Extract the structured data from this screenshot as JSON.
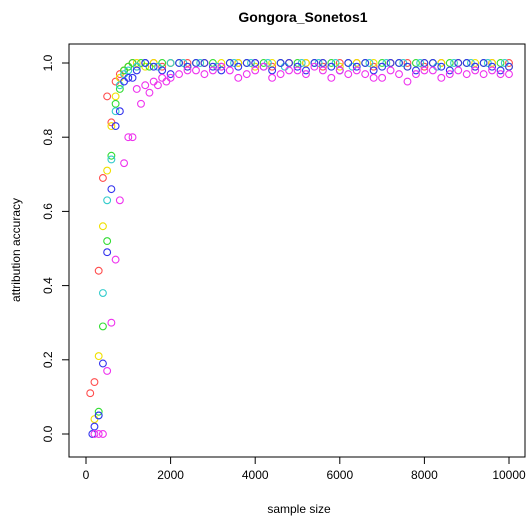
{
  "chart_data": {
    "type": "scatter",
    "title": "Gongora_Sonetos1",
    "xlabel": "sample size",
    "ylabel": "attribution accuracy",
    "xlim": [
      0,
      10000
    ],
    "ylim": [
      0,
      1
    ],
    "x_ticks": [
      0,
      2000,
      4000,
      6000,
      8000,
      10000
    ],
    "y_ticks": [
      0.0,
      0.2,
      0.4,
      0.6,
      0.8,
      1.0
    ],
    "x_tick_labels": [
      "0",
      "2000",
      "4000",
      "6000",
      "8000",
      "10000"
    ],
    "y_tick_labels": [
      "0.0",
      "0.2",
      "0.4",
      "0.6",
      "0.8",
      "1.0"
    ],
    "grid": false,
    "legend": "none",
    "marker": "open-circle",
    "series": [
      {
        "color": "#ff4d4d",
        "points": [
          [
            100,
            0.11
          ],
          [
            200,
            0.14
          ],
          [
            300,
            0.44
          ],
          [
            400,
            0.69
          ],
          [
            500,
            0.91
          ],
          [
            600,
            0.84
          ],
          [
            700,
            0.95
          ],
          [
            800,
            0.97
          ],
          [
            900,
            0.98
          ],
          [
            1000,
            0.99
          ],
          [
            1100,
            1.0
          ],
          [
            1200,
            0.99
          ],
          [
            1400,
            1.0
          ],
          [
            1600,
            1.0
          ],
          [
            1800,
            0.99
          ],
          [
            2000,
            1.0
          ],
          [
            2400,
            1.0
          ],
          [
            2800,
            1.0
          ],
          [
            3200,
            0.99
          ],
          [
            3600,
            1.0
          ],
          [
            4000,
            1.0
          ],
          [
            4400,
            0.99
          ],
          [
            4800,
            1.0
          ],
          [
            5200,
            1.0
          ],
          [
            5600,
            0.99
          ],
          [
            6000,
            1.0
          ],
          [
            6400,
            1.0
          ],
          [
            6800,
            0.99
          ],
          [
            7200,
            1.0
          ],
          [
            7600,
            1.0
          ],
          [
            8000,
            0.99
          ],
          [
            8400,
            1.0
          ],
          [
            8800,
            1.0
          ],
          [
            9200,
            0.99
          ],
          [
            9600,
            1.0
          ],
          [
            10000,
            1.0
          ]
        ]
      },
      {
        "color": "#f0e000",
        "points": [
          [
            200,
            0.04
          ],
          [
            300,
            0.21
          ],
          [
            400,
            0.56
          ],
          [
            500,
            0.71
          ],
          [
            600,
            0.83
          ],
          [
            700,
            0.91
          ],
          [
            800,
            0.96
          ],
          [
            900,
            0.98
          ],
          [
            1000,
            0.99
          ],
          [
            1200,
            1.0
          ],
          [
            1400,
            0.99
          ],
          [
            1600,
            1.0
          ],
          [
            2000,
            1.0
          ],
          [
            2400,
            0.99
          ],
          [
            2800,
            1.0
          ],
          [
            3200,
            1.0
          ],
          [
            3600,
            1.0
          ],
          [
            4000,
            0.99
          ],
          [
            4400,
            1.0
          ],
          [
            4800,
            1.0
          ],
          [
            5200,
            1.0
          ],
          [
            5600,
            1.0
          ],
          [
            6000,
            0.99
          ],
          [
            6400,
            1.0
          ],
          [
            6800,
            1.0
          ],
          [
            7200,
            1.0
          ],
          [
            7600,
            0.99
          ],
          [
            8000,
            1.0
          ],
          [
            8400,
            1.0
          ],
          [
            8800,
            1.0
          ],
          [
            9200,
            1.0
          ],
          [
            9600,
            1.0
          ],
          [
            10000,
            0.99
          ]
        ]
      },
      {
        "color": "#33dd33",
        "points": [
          [
            300,
            0.06
          ],
          [
            400,
            0.29
          ],
          [
            500,
            0.52
          ],
          [
            600,
            0.75
          ],
          [
            700,
            0.89
          ],
          [
            800,
            0.93
          ],
          [
            900,
            0.98
          ],
          [
            1000,
            0.99
          ],
          [
            1100,
            1.0
          ],
          [
            1300,
            1.0
          ],
          [
            1500,
            0.99
          ],
          [
            1800,
            1.0
          ],
          [
            2200,
            1.0
          ],
          [
            2600,
            1.0
          ],
          [
            3000,
            1.0
          ],
          [
            3400,
            1.0
          ],
          [
            3800,
            1.0
          ],
          [
            4200,
            1.0
          ],
          [
            4600,
            1.0
          ],
          [
            5000,
            1.0
          ],
          [
            5400,
            1.0
          ],
          [
            5800,
            1.0
          ],
          [
            6200,
            1.0
          ],
          [
            6600,
            1.0
          ],
          [
            7000,
            1.0
          ],
          [
            7400,
            1.0
          ],
          [
            7800,
            1.0
          ],
          [
            8200,
            1.0
          ],
          [
            8600,
            1.0
          ],
          [
            9000,
            1.0
          ],
          [
            9400,
            1.0
          ],
          [
            9800,
            1.0
          ]
        ]
      },
      {
        "color": "#33cccc",
        "points": [
          [
            300,
            0.05
          ],
          [
            400,
            0.38
          ],
          [
            500,
            0.63
          ],
          [
            600,
            0.74
          ],
          [
            700,
            0.87
          ],
          [
            800,
            0.94
          ],
          [
            900,
            0.97
          ],
          [
            1000,
            0.98
          ],
          [
            1200,
            0.99
          ],
          [
            1400,
            1.0
          ],
          [
            1700,
            0.99
          ],
          [
            2000,
            1.0
          ],
          [
            2300,
            1.0
          ],
          [
            2700,
            1.0
          ],
          [
            3100,
            0.99
          ],
          [
            3500,
            1.0
          ],
          [
            3900,
            1.0
          ],
          [
            4300,
            1.0
          ],
          [
            4700,
            0.99
          ],
          [
            5100,
            1.0
          ],
          [
            5500,
            1.0
          ],
          [
            5900,
            1.0
          ],
          [
            6300,
            0.99
          ],
          [
            6700,
            1.0
          ],
          [
            7100,
            1.0
          ],
          [
            7500,
            1.0
          ],
          [
            7900,
            1.0
          ],
          [
            8300,
            0.99
          ],
          [
            8700,
            1.0
          ],
          [
            9100,
            1.0
          ],
          [
            9500,
            1.0
          ],
          [
            9900,
            1.0
          ]
        ]
      },
      {
        "color": "#3333ee",
        "points": [
          [
            150,
            0.0
          ],
          [
            200,
            0.02
          ],
          [
            300,
            0.05
          ],
          [
            400,
            0.19
          ],
          [
            500,
            0.49
          ],
          [
            600,
            0.66
          ],
          [
            700,
            0.83
          ],
          [
            800,
            0.87
          ],
          [
            900,
            0.95
          ],
          [
            1000,
            0.96
          ],
          [
            1100,
            0.96
          ],
          [
            1200,
            0.98
          ],
          [
            1400,
            1.0
          ],
          [
            1600,
            0.99
          ],
          [
            1800,
            0.98
          ],
          [
            2000,
            0.97
          ],
          [
            2200,
            1.0
          ],
          [
            2400,
            0.99
          ],
          [
            2600,
            1.0
          ],
          [
            2800,
            1.0
          ],
          [
            3000,
            0.99
          ],
          [
            3200,
            0.98
          ],
          [
            3400,
            1.0
          ],
          [
            3600,
            0.99
          ],
          [
            3800,
            1.0
          ],
          [
            4000,
            1.0
          ],
          [
            4200,
            0.99
          ],
          [
            4400,
            0.98
          ],
          [
            4600,
            1.0
          ],
          [
            4800,
            1.0
          ],
          [
            5000,
            0.99
          ],
          [
            5200,
            0.98
          ],
          [
            5400,
            1.0
          ],
          [
            5600,
            1.0
          ],
          [
            5800,
            0.99
          ],
          [
            6000,
            0.98
          ],
          [
            6200,
            1.0
          ],
          [
            6400,
            0.99
          ],
          [
            6600,
            1.0
          ],
          [
            6800,
            0.98
          ],
          [
            7000,
            0.99
          ],
          [
            7200,
            1.0
          ],
          [
            7400,
            1.0
          ],
          [
            7600,
            0.99
          ],
          [
            7800,
            0.98
          ],
          [
            8000,
            1.0
          ],
          [
            8200,
            1.0
          ],
          [
            8400,
            0.99
          ],
          [
            8600,
            0.98
          ],
          [
            8800,
            1.0
          ],
          [
            9000,
            1.0
          ],
          [
            9200,
            0.99
          ],
          [
            9400,
            1.0
          ],
          [
            9600,
            0.99
          ],
          [
            9800,
            0.98
          ],
          [
            10000,
            0.99
          ]
        ]
      },
      {
        "color": "#ee33ee",
        "points": [
          [
            200,
            0.0
          ],
          [
            300,
            0.0
          ],
          [
            400,
            0.0
          ],
          [
            500,
            0.17
          ],
          [
            600,
            0.3
          ],
          [
            700,
            0.47
          ],
          [
            800,
            0.63
          ],
          [
            900,
            0.73
          ],
          [
            1000,
            0.8
          ],
          [
            1100,
            0.8
          ],
          [
            1200,
            0.93
          ],
          [
            1300,
            0.89
          ],
          [
            1400,
            0.94
          ],
          [
            1500,
            0.92
          ],
          [
            1600,
            0.95
          ],
          [
            1700,
            0.94
          ],
          [
            1800,
            0.96
          ],
          [
            1900,
            0.95
          ],
          [
            2000,
            0.96
          ],
          [
            2200,
            0.97
          ],
          [
            2400,
            0.98
          ],
          [
            2600,
            0.98
          ],
          [
            2800,
            0.97
          ],
          [
            3000,
            0.98
          ],
          [
            3200,
            0.99
          ],
          [
            3400,
            0.98
          ],
          [
            3600,
            0.96
          ],
          [
            3800,
            0.97
          ],
          [
            4000,
            0.98
          ],
          [
            4200,
            0.99
          ],
          [
            4400,
            0.96
          ],
          [
            4600,
            0.97
          ],
          [
            4800,
            0.98
          ],
          [
            5000,
            0.98
          ],
          [
            5200,
            0.97
          ],
          [
            5400,
            0.99
          ],
          [
            5600,
            0.98
          ],
          [
            5800,
            0.96
          ],
          [
            6000,
            0.98
          ],
          [
            6200,
            0.97
          ],
          [
            6400,
            0.98
          ],
          [
            6600,
            0.97
          ],
          [
            6800,
            0.96
          ],
          [
            7000,
            0.96
          ],
          [
            7200,
            0.98
          ],
          [
            7400,
            0.97
          ],
          [
            7600,
            0.95
          ],
          [
            7800,
            0.97
          ],
          [
            8000,
            0.98
          ],
          [
            8200,
            0.98
          ],
          [
            8400,
            0.96
          ],
          [
            8600,
            0.97
          ],
          [
            8800,
            0.98
          ],
          [
            9000,
            0.97
          ],
          [
            9200,
            0.98
          ],
          [
            9400,
            0.97
          ],
          [
            9600,
            0.98
          ],
          [
            9800,
            0.97
          ],
          [
            10000,
            0.97
          ]
        ]
      }
    ]
  }
}
